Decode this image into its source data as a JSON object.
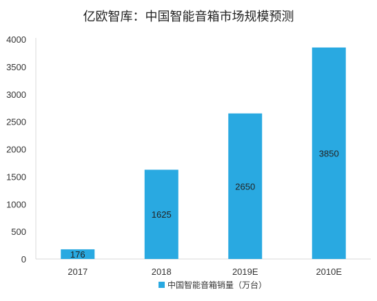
{
  "chart_data": {
    "type": "bar",
    "title": "亿欧智库：中国智能音箱市场规模预测",
    "categories": [
      "2017",
      "2018",
      "2019E",
      "2010E"
    ],
    "series": [
      {
        "name": "中国智能音箱销量（万台）",
        "values": [
          176,
          1625,
          2650,
          3850
        ]
      }
    ],
    "data_labels": [
      "176",
      "1625",
      "2650",
      "3850"
    ],
    "ylim": [
      0,
      4000
    ],
    "yticks": [
      0,
      500,
      1000,
      1500,
      2000,
      2500,
      3000,
      3500,
      4000
    ],
    "grid": false,
    "legend": "bottom-center",
    "xlabel": "",
    "ylabel": ""
  },
  "colors": {
    "bar": "#29a9e1",
    "axis": "#d9d9d9",
    "text": "#222222",
    "tick_text": "#333333"
  }
}
